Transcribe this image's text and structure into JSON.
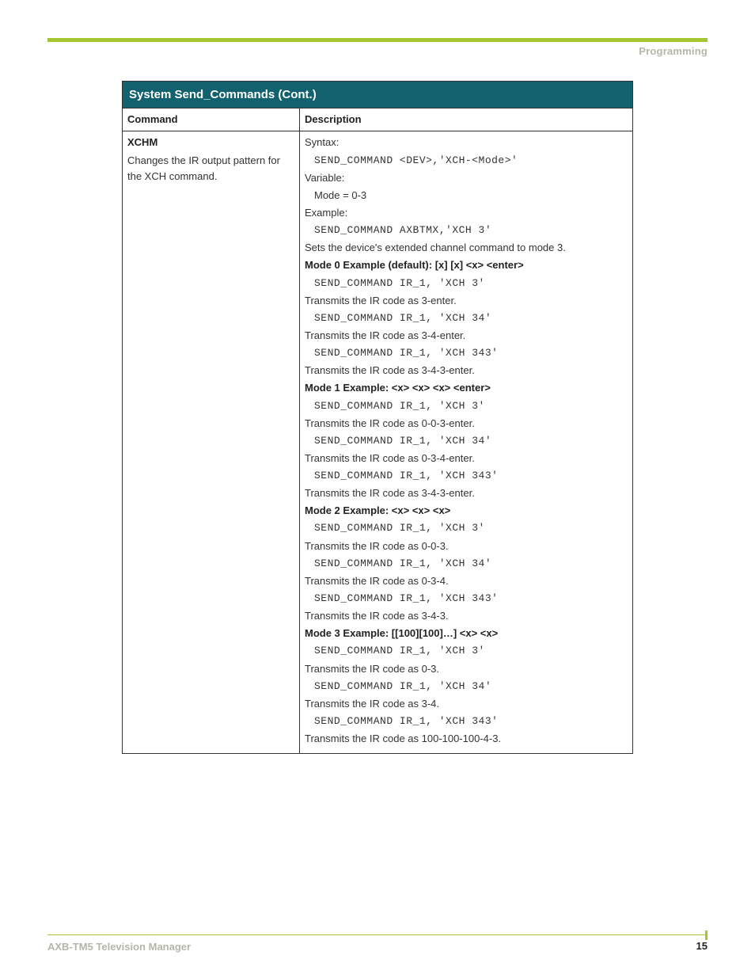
{
  "breadcrumb": "Programming",
  "table": {
    "title": "System Send_Commands (Cont.)",
    "col_command": "Command",
    "col_description": "Description",
    "cmd_name": "XCHM",
    "cmd_desc": "Changes the IR output pattern for the XCH command.",
    "lines": [
      {
        "t": "plain",
        "v": "Syntax:"
      },
      {
        "t": "code",
        "v": "SEND_COMMAND <DEV>,'XCH-<Mode>'"
      },
      {
        "t": "plain",
        "v": "Variable:"
      },
      {
        "t": "indent",
        "v": "Mode = 0-3"
      },
      {
        "t": "plain",
        "v": "Example:"
      },
      {
        "t": "code",
        "v": "SEND_COMMAND AXBTMX,'XCH 3'"
      },
      {
        "t": "plain",
        "v": "Sets the device's extended channel command to mode 3."
      },
      {
        "t": "bold",
        "v": "Mode 0 Example (default): [x] [x] <x> <enter>"
      },
      {
        "t": "code",
        "v": "SEND_COMMAND IR_1, 'XCH 3'"
      },
      {
        "t": "plain",
        "v": "Transmits the IR code as 3-enter."
      },
      {
        "t": "code",
        "v": "SEND_COMMAND IR_1, 'XCH 34'"
      },
      {
        "t": "plain",
        "v": "Transmits the IR code as 3-4-enter."
      },
      {
        "t": "code",
        "v": "SEND_COMMAND IR_1, 'XCH 343'"
      },
      {
        "t": "plain",
        "v": "Transmits the IR code as 3-4-3-enter."
      },
      {
        "t": "bold",
        "v": "Mode 1 Example: <x> <x> <x> <enter>"
      },
      {
        "t": "code",
        "v": "SEND_COMMAND IR_1, 'XCH 3'"
      },
      {
        "t": "plain",
        "v": "Transmits the IR code as 0-0-3-enter."
      },
      {
        "t": "code",
        "v": "SEND_COMMAND IR_1, 'XCH 34'"
      },
      {
        "t": "plain",
        "v": "Transmits the IR code as 0-3-4-enter."
      },
      {
        "t": "code",
        "v": "SEND_COMMAND IR_1, 'XCH 343'"
      },
      {
        "t": "plain",
        "v": "Transmits the IR code as 3-4-3-enter."
      },
      {
        "t": "bold",
        "v": "Mode 2 Example: <x> <x> <x>"
      },
      {
        "t": "code",
        "v": "SEND_COMMAND IR_1, 'XCH 3'"
      },
      {
        "t": "plain",
        "v": "Transmits the IR code as 0-0-3."
      },
      {
        "t": "code",
        "v": "SEND_COMMAND IR_1, 'XCH 34'"
      },
      {
        "t": "plain",
        "v": "Transmits the IR code as 0-3-4."
      },
      {
        "t": "code",
        "v": "SEND_COMMAND IR_1, 'XCH 343'"
      },
      {
        "t": "plain",
        "v": "Transmits the IR code as 3-4-3."
      },
      {
        "t": "bold",
        "v": "Mode 3 Example: [[100][100]…] <x> <x>"
      },
      {
        "t": "code",
        "v": "SEND_COMMAND IR_1, 'XCH 3'"
      },
      {
        "t": "plain",
        "v": "Transmits the IR code as 0-3."
      },
      {
        "t": "code",
        "v": "SEND_COMMAND IR_1, 'XCH 34'"
      },
      {
        "t": "plain",
        "v": "Transmits the IR code as 3-4."
      },
      {
        "t": "code",
        "v": "SEND_COMMAND IR_1, 'XCH 343'"
      },
      {
        "t": "plain",
        "v": "Transmits the IR code as 100-100-100-4-3."
      }
    ]
  },
  "footer": {
    "product": "AXB-TM5 Television Manager",
    "page": "15"
  }
}
